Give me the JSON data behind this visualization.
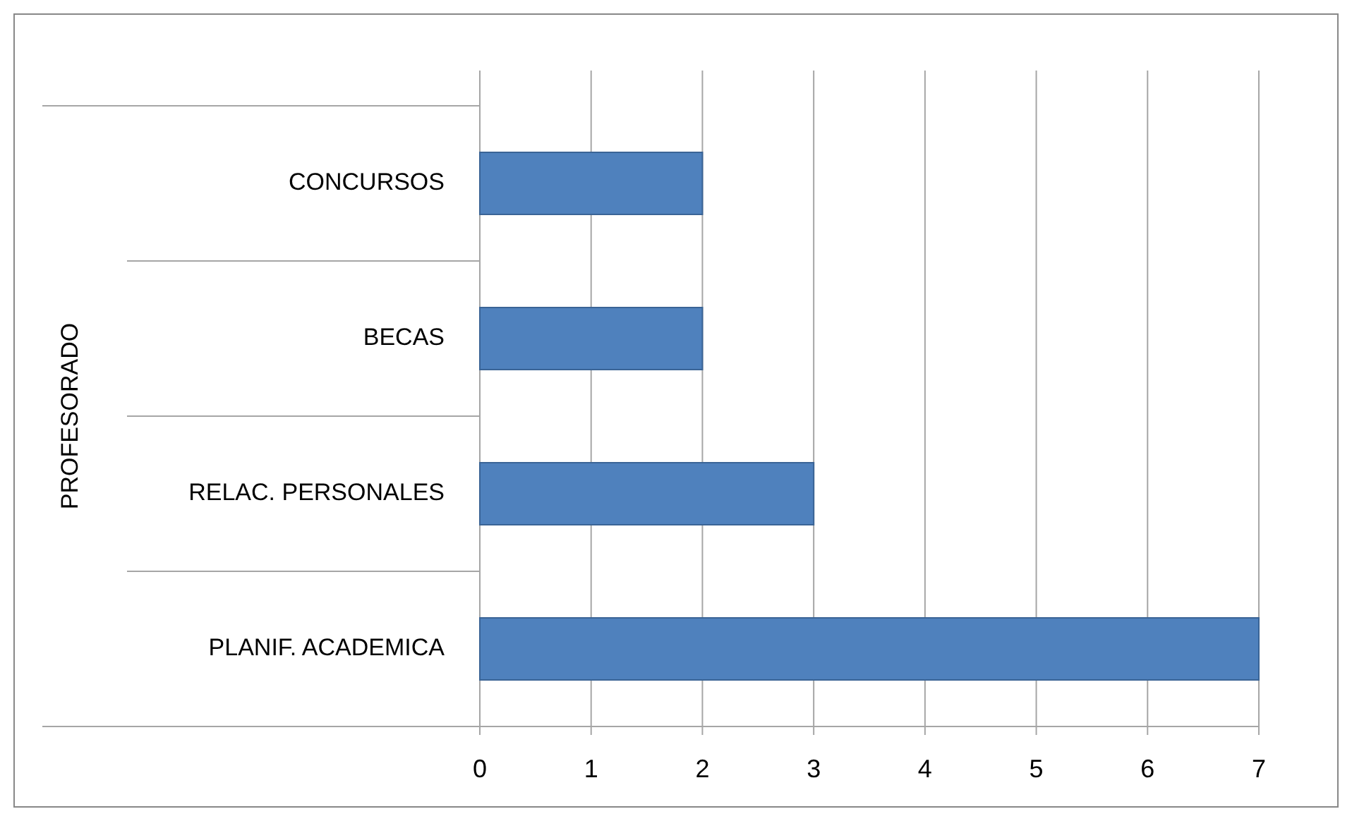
{
  "chart_data": {
    "type": "bar",
    "orientation": "horizontal",
    "ylabel": "PROFESORADO",
    "categories": [
      "CONCURSOS",
      "BECAS",
      "RELAC. PERSONALES",
      "PLANIF. ACADEMICA"
    ],
    "values": [
      2,
      2,
      3,
      7
    ],
    "color": "#4f81bd",
    "xlim": [
      0,
      7
    ],
    "xticks": [
      0,
      1,
      2,
      3,
      4,
      5,
      6,
      7
    ],
    "grid": "x"
  }
}
